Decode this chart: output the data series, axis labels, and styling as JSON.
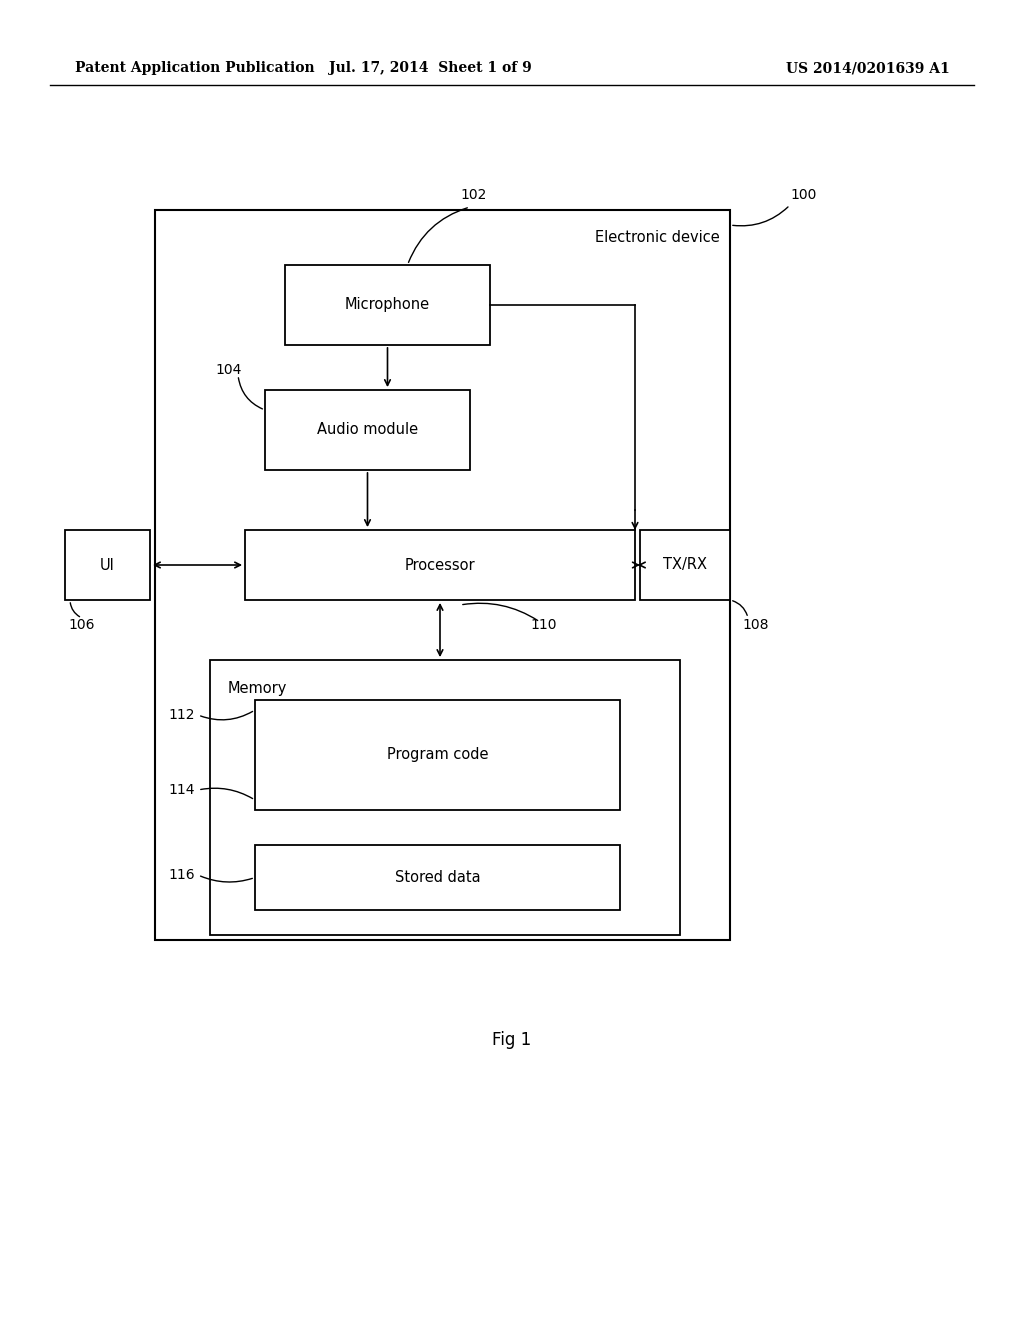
{
  "bg_color": "#ffffff",
  "header_left": "Patent Application Publication",
  "header_mid": "Jul. 17, 2014  Sheet 1 of 9",
  "header_right": "US 2014/0201639 A1",
  "fig_label": "Fig 1"
}
